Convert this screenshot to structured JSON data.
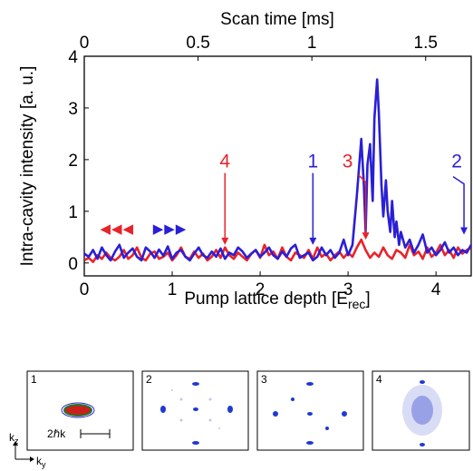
{
  "chart_data": {
    "type": "line",
    "title": "",
    "xlabel": "Pump lattice depth [E",
    "xlabel_sub": "rec",
    "xlabel_close": "]",
    "ylabel": "Intra-cavity intensity [a. u.]",
    "top_xlabel": "Scan time [ms]",
    "xlim": [
      0,
      4.4
    ],
    "ylim": [
      -0.25,
      4
    ],
    "top_xlim": [
      0,
      1.7
    ],
    "x_ticks": [
      "0",
      "1",
      "2",
      "3",
      "4"
    ],
    "x_tick_values": [
      0,
      1,
      2,
      3,
      4
    ],
    "y_ticks": [
      "0",
      "1",
      "2",
      "3",
      "4"
    ],
    "y_tick_values": [
      0,
      1,
      2,
      3,
      4
    ],
    "top_ticks": [
      "0",
      "0.5",
      "1",
      "1.5"
    ],
    "top_tick_values": [
      0,
      0.5,
      1,
      1.5
    ],
    "grid": false,
    "series": [
      {
        "color": "#2a1fd6",
        "x": [
          0,
          0.05,
          0.1,
          0.15,
          0.2,
          0.25,
          0.3,
          0.35,
          0.4,
          0.45,
          0.5,
          0.55,
          0.6,
          0.65,
          0.7,
          0.75,
          0.8,
          0.85,
          0.9,
          0.95,
          1.0,
          1.05,
          1.1,
          1.15,
          1.2,
          1.25,
          1.3,
          1.35,
          1.4,
          1.45,
          1.5,
          1.55,
          1.6,
          1.65,
          1.7,
          1.75,
          1.8,
          1.85,
          1.9,
          1.95,
          2.0,
          2.05,
          2.1,
          2.15,
          2.2,
          2.25,
          2.3,
          2.35,
          2.4,
          2.45,
          2.5,
          2.55,
          2.6,
          2.65,
          2.7,
          2.75,
          2.8,
          2.85,
          2.9,
          2.95,
          3.0,
          3.05,
          3.1,
          3.15,
          3.18,
          3.2,
          3.22,
          3.25,
          3.28,
          3.3,
          3.33,
          3.35,
          3.38,
          3.4,
          3.43,
          3.45,
          3.48,
          3.5,
          3.53,
          3.55,
          3.58,
          3.6,
          3.65,
          3.7,
          3.75,
          3.8,
          3.85,
          3.9,
          3.95,
          4.0,
          4.05,
          4.1,
          4.15,
          4.2,
          4.25,
          4.3,
          4.35,
          4.4
        ],
        "y": [
          0.18,
          0.12,
          0.25,
          0.08,
          0.3,
          0.15,
          0.05,
          0.22,
          0.35,
          0.1,
          0.2,
          0.28,
          0.12,
          0.05,
          0.3,
          0.22,
          0.1,
          0.26,
          0.14,
          0.32,
          0.08,
          0.2,
          0.25,
          0.12,
          0.05,
          0.18,
          0.3,
          0.15,
          0.1,
          0.22,
          0.12,
          0.28,
          0.08,
          0.2,
          0.15,
          0.3,
          0.22,
          0.1,
          0.18,
          0.25,
          0.12,
          0.2,
          0.3,
          0.15,
          0.08,
          0.22,
          0.12,
          0.28,
          0.35,
          0.1,
          0.15,
          0.2,
          0.05,
          0.12,
          0.3,
          0.15,
          0.25,
          0.1,
          0.2,
          0.45,
          0.15,
          0.35,
          1.3,
          2.4,
          1.5,
          0.6,
          1.9,
          2.3,
          1.2,
          2.8,
          3.55,
          2.9,
          1.5,
          0.9,
          1.6,
          1.0,
          0.6,
          1.2,
          0.5,
          0.8,
          0.35,
          0.6,
          0.3,
          0.45,
          0.2,
          0.35,
          0.55,
          0.2,
          0.3,
          0.15,
          0.25,
          0.4,
          0.2,
          0.3,
          0.15,
          0.25,
          0.2,
          0.35
        ]
      },
      {
        "color": "#e8232a",
        "x": [
          0,
          0.05,
          0.1,
          0.15,
          0.2,
          0.25,
          0.3,
          0.35,
          0.4,
          0.45,
          0.5,
          0.55,
          0.6,
          0.65,
          0.7,
          0.75,
          0.8,
          0.85,
          0.9,
          0.95,
          1.0,
          1.05,
          1.1,
          1.15,
          1.2,
          1.25,
          1.3,
          1.35,
          1.4,
          1.45,
          1.5,
          1.55,
          1.6,
          1.65,
          1.7,
          1.75,
          1.8,
          1.85,
          1.9,
          1.95,
          2.0,
          2.05,
          2.1,
          2.15,
          2.2,
          2.25,
          2.3,
          2.35,
          2.4,
          2.45,
          2.5,
          2.55,
          2.6,
          2.65,
          2.7,
          2.75,
          2.8,
          2.85,
          2.9,
          2.95,
          3.0,
          3.05,
          3.1,
          3.15,
          3.2,
          3.25,
          3.3,
          3.35,
          3.4,
          3.45,
          3.5,
          3.55,
          3.6,
          3.65,
          3.7,
          3.75,
          3.8,
          3.85,
          3.9,
          3.95,
          4.0,
          4.05,
          4.1,
          4.15,
          4.2,
          4.25,
          4.3,
          4.35,
          4.4
        ],
        "y": [
          0.05,
          0.1,
          0.02,
          0.15,
          0.08,
          0.2,
          0.1,
          0.05,
          0.12,
          0.25,
          0.08,
          0.15,
          0.3,
          0.1,
          0.05,
          0.18,
          0.22,
          0.08,
          0.12,
          0.2,
          0.05,
          0.15,
          0.3,
          0.12,
          0.08,
          0.22,
          0.1,
          0.18,
          0.05,
          0.12,
          0.25,
          0.1,
          0.3,
          0.15,
          0.08,
          0.2,
          0.12,
          0.05,
          0.18,
          0.25,
          0.1,
          0.35,
          0.15,
          0.22,
          0.08,
          0.3,
          0.12,
          0.05,
          0.2,
          0.15,
          0.1,
          0.25,
          0.08,
          0.3,
          0.12,
          0.18,
          0.05,
          0.15,
          0.22,
          0.1,
          0.2,
          0.12,
          0.3,
          0.45,
          0.25,
          0.1,
          0.2,
          0.12,
          0.3,
          0.15,
          0.08,
          0.25,
          0.2,
          0.1,
          0.35,
          0.15,
          0.22,
          0.08,
          0.3,
          0.12,
          0.2,
          0.35,
          0.15,
          0.25,
          0.1,
          0.3,
          0.18,
          0.25,
          0.3
        ]
      }
    ],
    "annotations": [
      {
        "label": "1",
        "x": 2.6,
        "color": "#2a1fd6",
        "text_y": 1.6,
        "arrow_to": 0.35
      },
      {
        "label": "2",
        "x": 4.38,
        "color": "#2a1fd6",
        "text_y": 1.6,
        "arrow_to": 0.55
      },
      {
        "label": "3",
        "x": 3.18,
        "color": "#e8232a",
        "text_y": 1.6,
        "arrow_to": 0.45
      },
      {
        "label": "4",
        "x": 1.6,
        "color": "#e8232a",
        "text_y": 1.6,
        "arrow_to": 0.35
      }
    ],
    "direction_arrows": [
      {
        "color": "#e8232a",
        "glyph": "◀◀◀",
        "x": 0.18,
        "y": 0.68
      },
      {
        "color": "#2a1fd6",
        "glyph": "▶▶▶",
        "x": 0.78,
        "y": 0.68
      }
    ]
  },
  "panels": [
    {
      "number": "1"
    },
    {
      "number": "2"
    },
    {
      "number": "3"
    },
    {
      "number": "4"
    }
  ],
  "scale_bar_label": "2ℏk",
  "axis_kz": "k",
  "axis_kz_sub": "z",
  "axis_ky": "k",
  "axis_ky_sub": "y"
}
